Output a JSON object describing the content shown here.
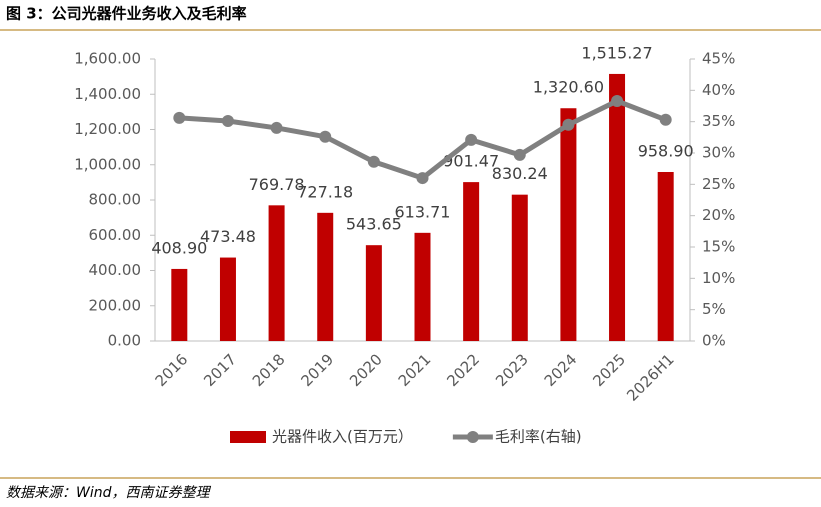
{
  "chart_data": {
    "type": "bar",
    "title": "图 3：公司光器件业务收入及毛利率",
    "source": "数据来源：Wind，西南证券整理",
    "categories": [
      "2016",
      "2017",
      "2018",
      "2019",
      "2020",
      "2021",
      "2022",
      "2023",
      "2024",
      "2025",
      "2026H1"
    ],
    "series": [
      {
        "name": "光器件收入(百万元）",
        "type": "bar",
        "color": "#c00000",
        "values": [
          408.9,
          473.48,
          769.78,
          727.18,
          543.65,
          613.71,
          901.47,
          830.24,
          1320.6,
          1515.27,
          958.9
        ],
        "value_labels": [
          "408.90",
          "473.48",
          "769.78",
          "727.18",
          "543.65",
          "613.71",
          "901.47",
          "830.24",
          "1,320.60",
          "1,515.27",
          "958.90"
        ]
      },
      {
        "name": "毛利率(右轴)",
        "type": "line",
        "axis": "y2",
        "color": "#808080",
        "values": [
          35.6,
          35.1,
          34.0,
          32.6,
          28.6,
          26.0,
          32.1,
          29.7,
          34.5,
          38.3,
          35.3
        ]
      }
    ],
    "ylim": [
      0,
      1600
    ],
    "yticks": [
      {
        "value": 0,
        "label": "0.00"
      },
      {
        "value": 200,
        "label": "200.00"
      },
      {
        "value": 400,
        "label": "400.00"
      },
      {
        "value": 600,
        "label": "600.00"
      },
      {
        "value": 800,
        "label": "800.00"
      },
      {
        "value": 1000,
        "label": "1,000.00"
      },
      {
        "value": 1200,
        "label": "1,200.00"
      },
      {
        "value": 1400,
        "label": "1,400.00"
      },
      {
        "value": 1600,
        "label": "1,600.00"
      }
    ],
    "y2lim": [
      0,
      45
    ],
    "y2ticks": [
      {
        "value": 0,
        "label": "0%"
      },
      {
        "value": 5,
        "label": "5%"
      },
      {
        "value": 10,
        "label": "10%"
      },
      {
        "value": 15,
        "label": "15%"
      },
      {
        "value": 20,
        "label": "20%"
      },
      {
        "value": 25,
        "label": "25%"
      },
      {
        "value": 30,
        "label": "30%"
      },
      {
        "value": 35,
        "label": "35%"
      },
      {
        "value": 40,
        "label": "40%"
      },
      {
        "value": 45,
        "label": "45%"
      }
    ],
    "grid": false,
    "legend": "bottom"
  }
}
